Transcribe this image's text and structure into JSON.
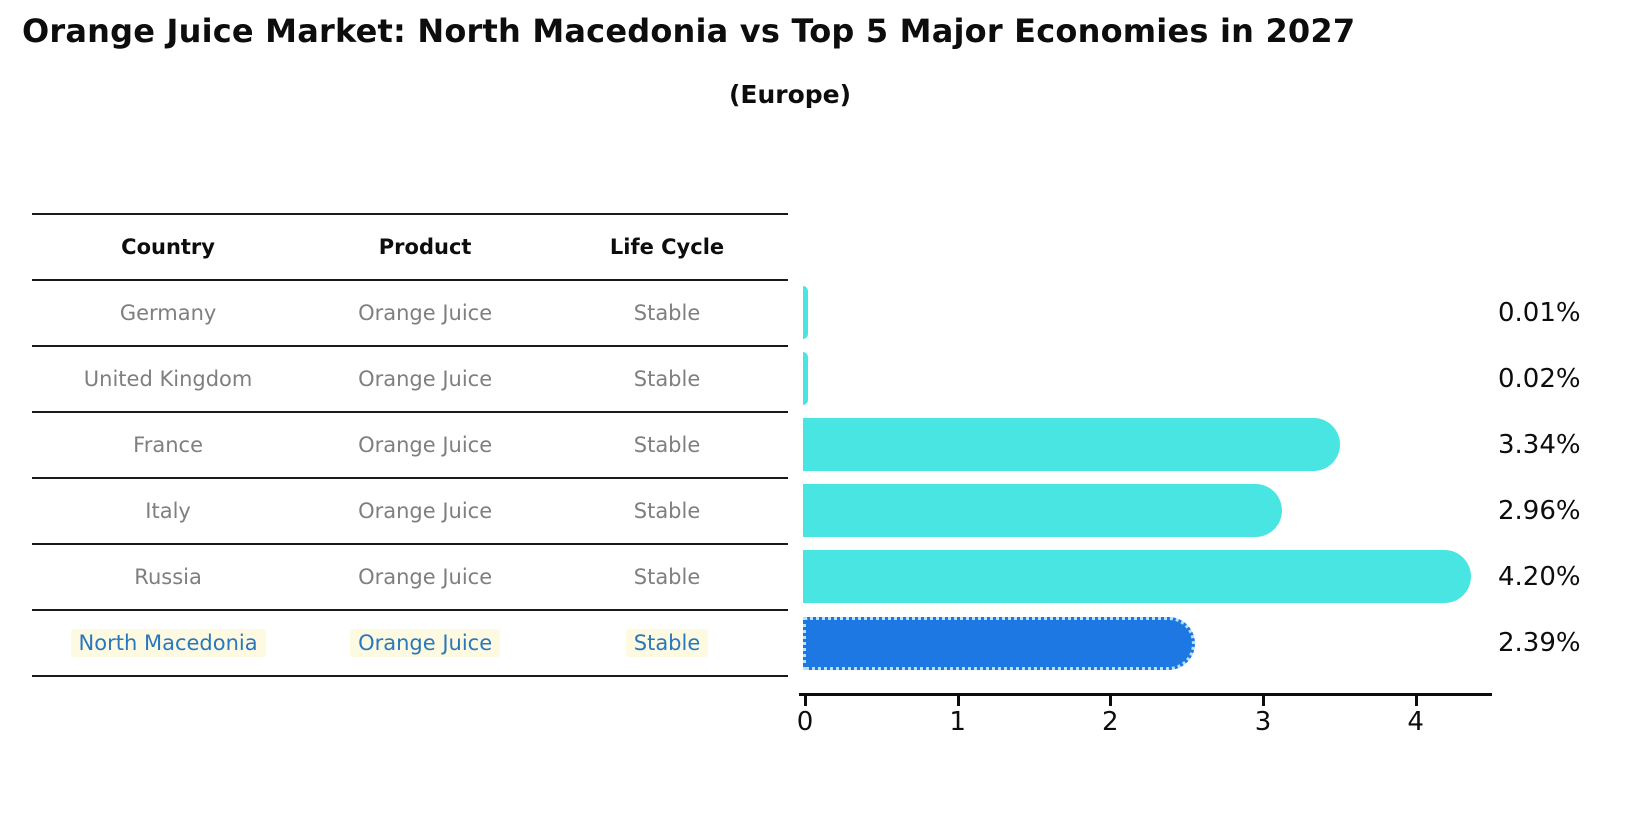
{
  "title": "Orange Juice Market: North Macedonia vs Top 5 Major Economies in 2027",
  "subtitle": "(Europe)",
  "table": {
    "headers": [
      "Country",
      "Product",
      "Life Cycle"
    ],
    "rows": [
      {
        "country": "Germany",
        "product": "Orange Juice",
        "life_cycle": "Stable",
        "highlighted": false
      },
      {
        "country": "United Kingdom",
        "product": "Orange Juice",
        "life_cycle": "Stable",
        "highlighted": false
      },
      {
        "country": "France",
        "product": "Orange Juice",
        "life_cycle": "Stable",
        "highlighted": false
      },
      {
        "country": "Italy",
        "product": "Orange Juice",
        "life_cycle": "Stable",
        "highlighted": false
      },
      {
        "country": "Russia",
        "product": "Orange Juice",
        "life_cycle": "Stable",
        "highlighted": false
      },
      {
        "country": "North Macedonia",
        "product": "Orange Juice",
        "life_cycle": "Stable",
        "highlighted": true
      }
    ]
  },
  "chart_data": {
    "type": "bar",
    "orientation": "horizontal",
    "title": "Orange Juice Market: North Macedonia vs Top 5 Major Economies in 2027",
    "subtitle": "(Europe)",
    "categories": [
      "Germany",
      "United Kingdom",
      "France",
      "Italy",
      "Russia",
      "North Macedonia"
    ],
    "values": [
      0.01,
      0.02,
      3.34,
      2.96,
      4.2,
      2.39
    ],
    "value_labels": [
      "0.01%",
      "0.02%",
      "3.34%",
      "2.96%",
      "4.20%",
      "2.39%"
    ],
    "x_ticks": [
      0,
      1,
      2,
      3,
      4
    ],
    "xlim": [
      0,
      4.5
    ],
    "highlight_index": 5,
    "grid": false,
    "legend": false,
    "colors": {
      "default_bar": "#48E5E2",
      "highlight_bar": "#1E78E4",
      "highlight_text": "#2878BE",
      "highlight_bg": "#FDFAE1",
      "table_text": "#7F7F7F",
      "axis": "#0D0D0D"
    }
  }
}
